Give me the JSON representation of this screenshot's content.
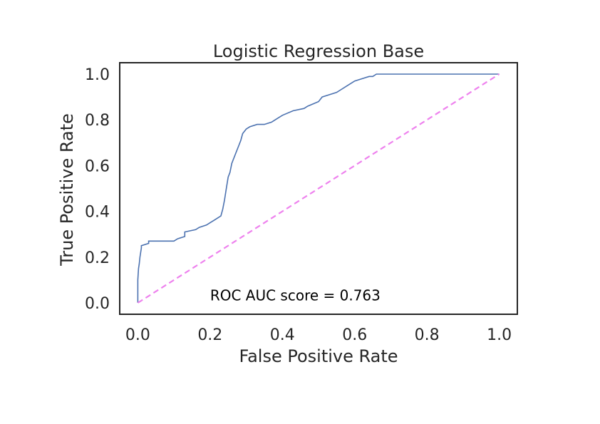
{
  "chart_data": {
    "type": "line",
    "title": "Logistic Regression Base",
    "xlabel": "False Positive Rate",
    "ylabel": "True Positive Rate",
    "xlim": [
      -0.05,
      1.05
    ],
    "ylim": [
      -0.05,
      1.05
    ],
    "xticks": [
      0.0,
      0.2,
      0.4,
      0.6,
      0.8,
      1.0
    ],
    "yticks": [
      0.0,
      0.2,
      0.4,
      0.6,
      0.8,
      1.0
    ],
    "xtick_labels": [
      "0.0",
      "0.2",
      "0.4",
      "0.6",
      "0.8",
      "1.0"
    ],
    "ytick_labels": [
      "0.0",
      "0.2",
      "0.4",
      "0.6",
      "0.8",
      "1.0"
    ],
    "grid": false,
    "annotation": "ROC AUC score = 0.763",
    "colors": {
      "roc": "#4c72b0",
      "diagonal": "#ee82ee",
      "frame": "#262626"
    },
    "series": [
      {
        "style": "solid",
        "x": [
          0.0,
          0.0,
          0.002,
          0.004,
          0.006,
          0.01,
          0.01,
          0.03,
          0.03,
          0.1,
          0.11,
          0.13,
          0.13,
          0.16,
          0.17,
          0.19,
          0.2,
          0.21,
          0.22,
          0.23,
          0.235,
          0.24,
          0.245,
          0.25,
          0.255,
          0.26,
          0.27,
          0.28,
          0.285,
          0.29,
          0.3,
          0.31,
          0.33,
          0.35,
          0.37,
          0.38,
          0.4,
          0.43,
          0.46,
          0.47,
          0.5,
          0.51,
          0.53,
          0.55,
          0.56,
          0.58,
          0.6,
          0.62,
          0.64,
          0.65,
          0.66,
          0.7,
          0.8,
          0.9,
          1.0
        ],
        "y": [
          0.0,
          0.1,
          0.15,
          0.17,
          0.2,
          0.24,
          0.25,
          0.26,
          0.27,
          0.27,
          0.28,
          0.29,
          0.31,
          0.32,
          0.33,
          0.34,
          0.35,
          0.36,
          0.37,
          0.38,
          0.41,
          0.45,
          0.5,
          0.55,
          0.57,
          0.61,
          0.65,
          0.69,
          0.71,
          0.74,
          0.76,
          0.77,
          0.78,
          0.78,
          0.79,
          0.8,
          0.82,
          0.84,
          0.85,
          0.86,
          0.88,
          0.9,
          0.91,
          0.92,
          0.93,
          0.95,
          0.97,
          0.98,
          0.99,
          0.99,
          1.0,
          1.0,
          1.0,
          1.0,
          1.0
        ]
      },
      {
        "style": "dashed",
        "x": [
          0.0,
          1.0
        ],
        "y": [
          0.0,
          1.0
        ]
      }
    ]
  }
}
